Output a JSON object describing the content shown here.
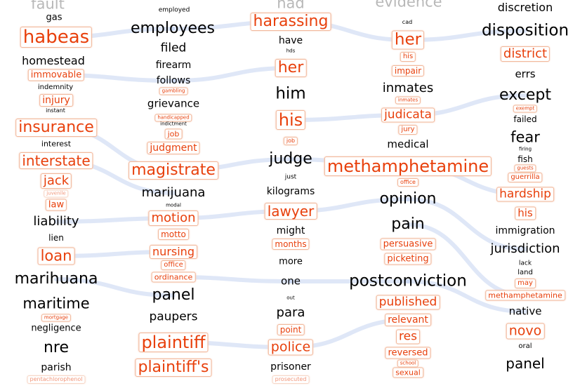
{
  "columns": [
    {
      "words": [
        {
          "text": "fault",
          "hl": false,
          "top": true
        },
        {
          "text": "gas",
          "hl": false
        },
        {
          "text": "habeas",
          "hl": true
        },
        {
          "text": "homestead",
          "hl": false
        },
        {
          "text": "immovable",
          "hl": true
        },
        {
          "text": "indemnity",
          "hl": false
        },
        {
          "text": "injury",
          "hl": true
        },
        {
          "text": "instant",
          "hl": false
        },
        {
          "text": "insurance",
          "hl": true
        },
        {
          "text": "interest",
          "hl": false
        },
        {
          "text": "interstate",
          "hl": true
        },
        {
          "text": "jack",
          "hl": true
        },
        {
          "text": "juvenile",
          "hl": true,
          "faint": true
        },
        {
          "text": "law",
          "hl": true
        },
        {
          "text": "liability",
          "hl": false
        },
        {
          "text": "lien",
          "hl": false
        },
        {
          "text": "loan",
          "hl": true
        },
        {
          "text": "marihuana",
          "hl": false
        },
        {
          "text": "maritime",
          "hl": false
        },
        {
          "text": "mortgage",
          "hl": true
        },
        {
          "text": "negligence",
          "hl": false
        },
        {
          "text": "nre",
          "hl": false
        },
        {
          "text": "parish",
          "hl": false
        },
        {
          "text": "pentachlorophenol",
          "hl": true,
          "faint": true
        }
      ]
    },
    {
      "words": [
        {
          "text": "employed",
          "hl": false
        },
        {
          "text": "employees",
          "hl": false
        },
        {
          "text": "filed",
          "hl": false
        },
        {
          "text": "firearm",
          "hl": false
        },
        {
          "text": "follows",
          "hl": false
        },
        {
          "text": "gambling",
          "hl": true
        },
        {
          "text": "grievance",
          "hl": false
        },
        {
          "text": "handicapped",
          "hl": true
        },
        {
          "text": "indictment",
          "hl": false
        },
        {
          "text": "job",
          "hl": true
        },
        {
          "text": "judgment",
          "hl": true
        },
        {
          "text": "magistrate",
          "hl": true
        },
        {
          "text": "marijuana",
          "hl": false
        },
        {
          "text": "modal",
          "hl": false
        },
        {
          "text": "motion",
          "hl": true
        },
        {
          "text": "motto",
          "hl": true
        },
        {
          "text": "nursing",
          "hl": true
        },
        {
          "text": "office",
          "hl": true
        },
        {
          "text": "ordinance",
          "hl": true
        },
        {
          "text": "panel",
          "hl": false
        },
        {
          "text": "paupers",
          "hl": false
        },
        {
          "text": "plaintiff",
          "hl": true
        },
        {
          "text": "plaintiff's",
          "hl": true
        }
      ]
    },
    {
      "words": [
        {
          "text": "had",
          "hl": false,
          "top": true
        },
        {
          "text": "harassing",
          "hl": true
        },
        {
          "text": "have",
          "hl": false
        },
        {
          "text": "hds",
          "hl": false
        },
        {
          "text": "her",
          "hl": true
        },
        {
          "text": "him",
          "hl": false
        },
        {
          "text": "his",
          "hl": true
        },
        {
          "text": "job",
          "hl": true
        },
        {
          "text": "judge",
          "hl": false
        },
        {
          "text": "just",
          "hl": false
        },
        {
          "text": "kilograms",
          "hl": false
        },
        {
          "text": "lawyer",
          "hl": true
        },
        {
          "text": "might",
          "hl": false
        },
        {
          "text": "months",
          "hl": true
        },
        {
          "text": "more",
          "hl": false
        },
        {
          "text": "one",
          "hl": false
        },
        {
          "text": "out",
          "hl": false
        },
        {
          "text": "para",
          "hl": false
        },
        {
          "text": "point",
          "hl": true
        },
        {
          "text": "police",
          "hl": true
        },
        {
          "text": "prisoner",
          "hl": false
        },
        {
          "text": "prosecuted",
          "hl": true,
          "faint": true
        }
      ]
    },
    {
      "words": [
        {
          "text": "evidence",
          "hl": false,
          "top": true
        },
        {
          "text": "cad",
          "hl": false
        },
        {
          "text": "her",
          "hl": true
        },
        {
          "text": "his",
          "hl": true
        },
        {
          "text": "impair",
          "hl": true
        },
        {
          "text": "inmates",
          "hl": false
        },
        {
          "text": "inmates",
          "hl": true
        },
        {
          "text": "judicata",
          "hl": true
        },
        {
          "text": "jury",
          "hl": true
        },
        {
          "text": "medical",
          "hl": false
        },
        {
          "text": "methamphetamine",
          "hl": true
        },
        {
          "text": "office",
          "hl": true
        },
        {
          "text": "opinion",
          "hl": false
        },
        {
          "text": "pain",
          "hl": false
        },
        {
          "text": "persuasive",
          "hl": true
        },
        {
          "text": "picketing",
          "hl": true
        },
        {
          "text": "postconviction",
          "hl": false
        },
        {
          "text": "published",
          "hl": true
        },
        {
          "text": "relevant",
          "hl": true
        },
        {
          "text": "res",
          "hl": true
        },
        {
          "text": "reversed",
          "hl": true
        },
        {
          "text": "school",
          "hl": true
        },
        {
          "text": "sexual",
          "hl": true
        }
      ]
    },
    {
      "words": [
        {
          "text": "discretion",
          "hl": false
        },
        {
          "text": "disposition",
          "hl": false
        },
        {
          "text": "district",
          "hl": true
        },
        {
          "text": "errs",
          "hl": false
        },
        {
          "text": "except",
          "hl": false
        },
        {
          "text": "exempt",
          "hl": true
        },
        {
          "text": "failed",
          "hl": false
        },
        {
          "text": "fear",
          "hl": false
        },
        {
          "text": "firing",
          "hl": false
        },
        {
          "text": "fish",
          "hl": false
        },
        {
          "text": "guests",
          "hl": true
        },
        {
          "text": "guerrilla",
          "hl": true
        },
        {
          "text": "hardship",
          "hl": true
        },
        {
          "text": "his",
          "hl": true
        },
        {
          "text": "immigration",
          "hl": false
        },
        {
          "text": "jurisdiction",
          "hl": false
        },
        {
          "text": "lack",
          "hl": false
        },
        {
          "text": "land",
          "hl": false
        },
        {
          "text": "may",
          "hl": true
        },
        {
          "text": "methamphetamine",
          "hl": true
        },
        {
          "text": "native",
          "hl": false
        },
        {
          "text": "novo",
          "hl": true
        },
        {
          "text": "oral",
          "hl": false
        },
        {
          "text": "panel",
          "hl": false
        }
      ]
    }
  ],
  "colors": {
    "highlight": "#e8400c",
    "highlight_border": "#f2b79a",
    "text": "#000000",
    "link": "#b9c9ee",
    "faded_top": "#b8b8b8"
  }
}
